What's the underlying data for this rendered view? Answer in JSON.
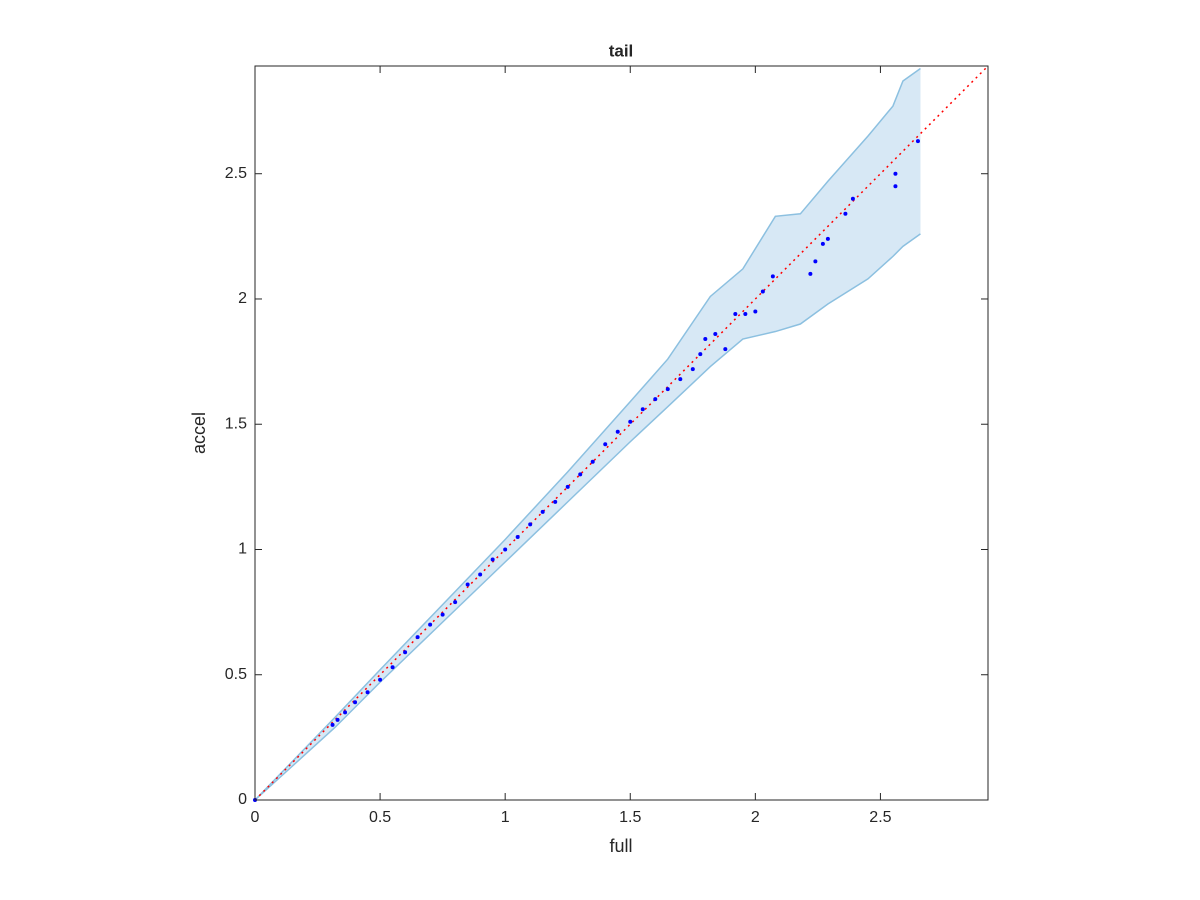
{
  "chart_data": {
    "type": "scatter",
    "title": "tail",
    "xlabel": "full",
    "ylabel": "accel",
    "xlim": [
      0,
      2.93
    ],
    "ylim": [
      0,
      2.93
    ],
    "xticks": [
      0,
      0.5,
      1,
      1.5,
      2,
      2.5
    ],
    "yticks": [
      0,
      0.5,
      1,
      1.5,
      2,
      2.5
    ],
    "band": {
      "color": "#d7e8f5",
      "edge_color": "#8cc0e0",
      "x": [
        0,
        0.32,
        0.5,
        0.75,
        1.0,
        1.25,
        1.5,
        1.65,
        1.82,
        1.95,
        2.08,
        2.18,
        2.29,
        2.45,
        2.55,
        2.59,
        2.66
      ],
      "upper": [
        0,
        0.33,
        0.52,
        0.78,
        1.04,
        1.31,
        1.59,
        1.76,
        2.01,
        2.12,
        2.33,
        2.34,
        2.47,
        2.65,
        2.77,
        2.87,
        2.92
      ],
      "lower": [
        0,
        0.29,
        0.47,
        0.71,
        0.95,
        1.19,
        1.43,
        1.57,
        1.73,
        1.84,
        1.87,
        1.9,
        1.98,
        2.08,
        2.17,
        2.21,
        2.26
      ]
    },
    "reference": {
      "color": "#ff0000",
      "x": [
        0,
        2.93
      ],
      "y": [
        0,
        2.93
      ]
    },
    "points": {
      "color": "#0000ff",
      "x": [
        0,
        0.31,
        0.33,
        0.36,
        0.4,
        0.45,
        0.5,
        0.55,
        0.6,
        0.65,
        0.7,
        0.75,
        0.8,
        0.85,
        0.9,
        0.95,
        1.0,
        1.05,
        1.1,
        1.15,
        1.2,
        1.25,
        1.3,
        1.35,
        1.4,
        1.45,
        1.5,
        1.55,
        1.6,
        1.65,
        1.7,
        1.75,
        1.78,
        1.8,
        1.84,
        1.88,
        1.92,
        1.96,
        2.0,
        2.03,
        2.07,
        2.22,
        2.24,
        2.27,
        2.29,
        2.36,
        2.39,
        2.56,
        2.56,
        2.65
      ],
      "y": [
        0,
        0.3,
        0.32,
        0.35,
        0.39,
        0.43,
        0.48,
        0.53,
        0.59,
        0.65,
        0.7,
        0.74,
        0.79,
        0.86,
        0.9,
        0.96,
        1.0,
        1.05,
        1.1,
        1.15,
        1.19,
        1.25,
        1.3,
        1.35,
        1.42,
        1.47,
        1.51,
        1.56,
        1.6,
        1.64,
        1.68,
        1.72,
        1.78,
        1.84,
        1.86,
        1.8,
        1.94,
        1.94,
        1.95,
        2.03,
        2.09,
        2.1,
        2.15,
        2.22,
        2.24,
        2.34,
        2.4,
        2.45,
        2.5,
        2.63
      ]
    }
  }
}
